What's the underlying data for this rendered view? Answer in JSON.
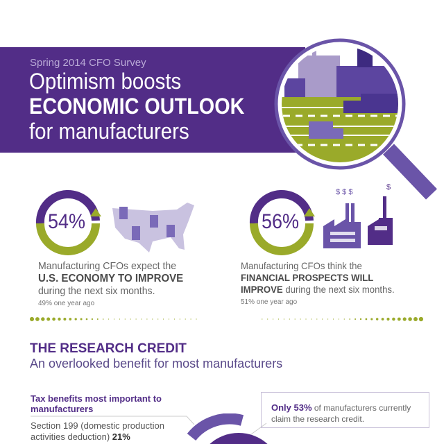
{
  "header": {
    "kicker": "Spring 2014 CFO Survey",
    "title_line1": "Optimism boosts",
    "title_line2": "ECONOMIC OUTLOOK",
    "title_line3": "for manufacturers"
  },
  "stats": [
    {
      "value": "54%",
      "text_pre": "Manufacturing CFOs expect the",
      "text_bold": "U.S. ECONOMY TO IMPROVE",
      "text_post": "during the next six months.",
      "prior": "49% one year ago"
    },
    {
      "value": "56%",
      "text_pre": "Manufacturing CFOs think the ",
      "text_bold": "FINANCIAL PROSPECTS WILL IMPROVE",
      "text_post": " during the next six months.",
      "prior": "51% one year ago"
    }
  ],
  "research": {
    "heading": "THE RESEARCH CREDIT",
    "subheading": "An overlooked benefit for most manufacturers",
    "tax_heading": "Tax benefits most important to manufacturers",
    "section199_label": "Section 199 (domestic production activities deduction) ",
    "section199_value": "21%",
    "callout_bold": "Only 53%",
    "callout_text": " of manufacturers currently claim the research credit."
  },
  "colors": {
    "purple": "#522d87",
    "green": "#9aaa2a",
    "lavender": "#c9c2e0"
  }
}
